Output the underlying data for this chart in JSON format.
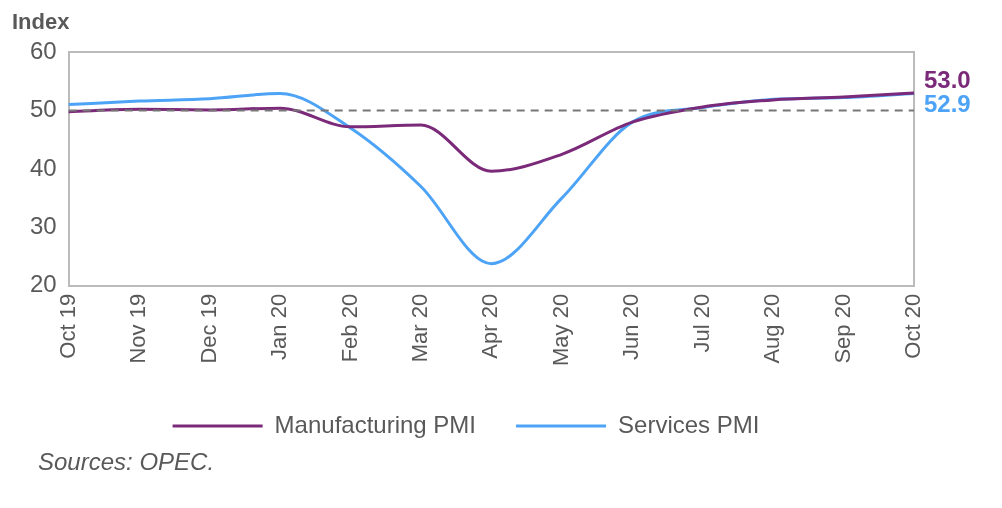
{
  "chart_data": {
    "type": "line",
    "ylabel": "Index",
    "categories": [
      "Oct 19",
      "Nov 19",
      "Dec 19",
      "Jan 20",
      "Feb 20",
      "Mar 20",
      "Apr 20",
      "May 20",
      "Jun 20",
      "Jul 20",
      "Aug 20",
      "Sep 20",
      "Oct 20"
    ],
    "series": [
      {
        "name": "Manufacturing PMI",
        "color": "#7b2a7a",
        "values": [
          49.8,
          50.2,
          50.1,
          50.4,
          47.2,
          47.5,
          39.6,
          42.5,
          48.0,
          50.6,
          51.8,
          52.3,
          53.0
        ],
        "value_labels": [
          null,
          null,
          null,
          null,
          null,
          null,
          null,
          null,
          null,
          null,
          null,
          null,
          "53.0"
        ]
      },
      {
        "name": "Services PMI",
        "color": "#4da3f5",
        "values": [
          51.0,
          51.6,
          52.0,
          52.9,
          47.0,
          37.0,
          23.8,
          35.0,
          48.0,
          50.5,
          51.9,
          52.2,
          52.9
        ],
        "value_labels": [
          null,
          null,
          null,
          null,
          null,
          null,
          null,
          null,
          null,
          null,
          null,
          null,
          "52.9"
        ]
      }
    ],
    "ylim": [
      20,
      60
    ],
    "yticks": [
      20,
      30,
      40,
      50,
      60
    ],
    "grid": false,
    "legend": "bottom",
    "marker": "none",
    "line_style": "solid",
    "ref_lines": [
      {
        "axis": "y",
        "value": 50,
        "color": "#777777",
        "line_style": "dashed"
      }
    ],
    "annotations": [
      "Sources: OPEC."
    ]
  }
}
